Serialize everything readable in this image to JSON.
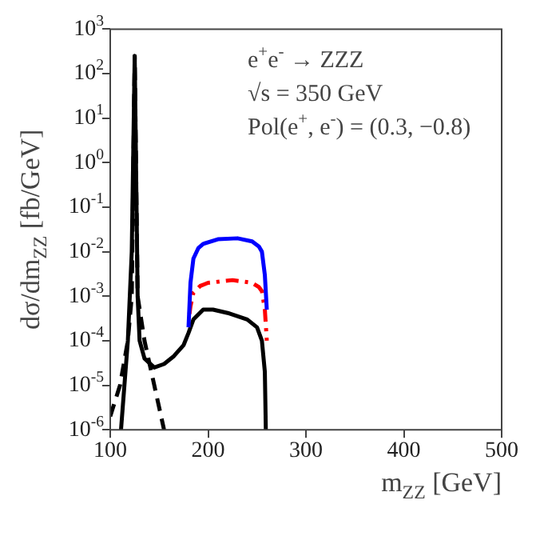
{
  "chart_data": {
    "type": "line",
    "xlabel": "m$_{ZZ}$ [GeV]",
    "ylabel": "dσ/dm$_{ZZ}$ [fb/GeV]",
    "log": "y",
    "grid": false,
    "legend": false,
    "marker": "none",
    "xlim": [
      100,
      500
    ],
    "xticks": [
      100,
      200,
      300,
      400,
      500
    ],
    "ylim": [
      1e-06,
      1000
    ],
    "yticks": [
      {
        "value": 1e-06,
        "label": "10$^{-6}$"
      },
      {
        "value": 1e-05,
        "label": "10$^{-5}$"
      },
      {
        "value": 0.0001,
        "label": "10$^{-4}$"
      },
      {
        "value": 0.001,
        "label": "10$^{-3}$"
      },
      {
        "value": 0.01,
        "label": "10$^{-2}$"
      },
      {
        "value": 0.1,
        "label": "10$^{-1}$"
      },
      {
        "value": 1,
        "label": "10$^{0}$"
      },
      {
        "value": 10,
        "label": "10$^{1}$"
      },
      {
        "value": 100,
        "label": "10$^{2}$"
      },
      {
        "value": 1000,
        "label": "10$^{3}$"
      }
    ],
    "annotations": [
      "e$^{+}$e$^{-}$ → ZZZ",
      "√s = 350 GeV",
      "Pol(e$^{+}$, e$^{-}$) = (0.3, −0.8)"
    ],
    "series": [
      {
        "color": "#0000ff",
        "line_style": "solid",
        "x": [
          180,
          182,
          185,
          190,
          195,
          210,
          230,
          245,
          252,
          255,
          258,
          260
        ],
        "values": [
          0.0002,
          0.002,
          0.007,
          0.012,
          0.015,
          0.019,
          0.02,
          0.017,
          0.013,
          0.01,
          0.003,
          0.0005
        ]
      },
      {
        "color": "#ff0000",
        "line_style": "dashdot",
        "x": [
          181,
          182,
          185,
          192,
          200,
          225,
          245,
          252,
          255,
          258,
          260
        ],
        "values": [
          0.0004,
          0.0006,
          0.0012,
          0.0017,
          0.002,
          0.0023,
          0.002,
          0.0016,
          0.0013,
          0.0005,
          0.0001
        ]
      },
      {
        "color": "#000000",
        "line_style": "dashed",
        "x": [
          100,
          110,
          118,
          122,
          125,
          128,
          135,
          145,
          155
        ],
        "values": [
          2e-06,
          1e-05,
          0.0001,
          0.001,
          250,
          0.001,
          0.0001,
          1e-05,
          1e-06
        ]
      },
      {
        "color": "#000000",
        "line_style": "solid",
        "x": [
          111,
          118,
          122,
          125,
          128,
          130,
          135,
          145,
          155,
          165,
          175,
          180,
          185,
          195,
          205,
          220,
          240,
          250,
          255,
          258,
          259
        ],
        "values": [
          1e-06,
          0.0001,
          0.01,
          250,
          0.001,
          0.0001,
          4e-05,
          2.5e-05,
          3e-05,
          4.5e-05,
          8e-05,
          0.00015,
          0.0003,
          0.0005,
          0.0005,
          0.00042,
          0.0003,
          0.0002,
          0.0001,
          2e-05,
          1e-06
        ]
      }
    ]
  }
}
